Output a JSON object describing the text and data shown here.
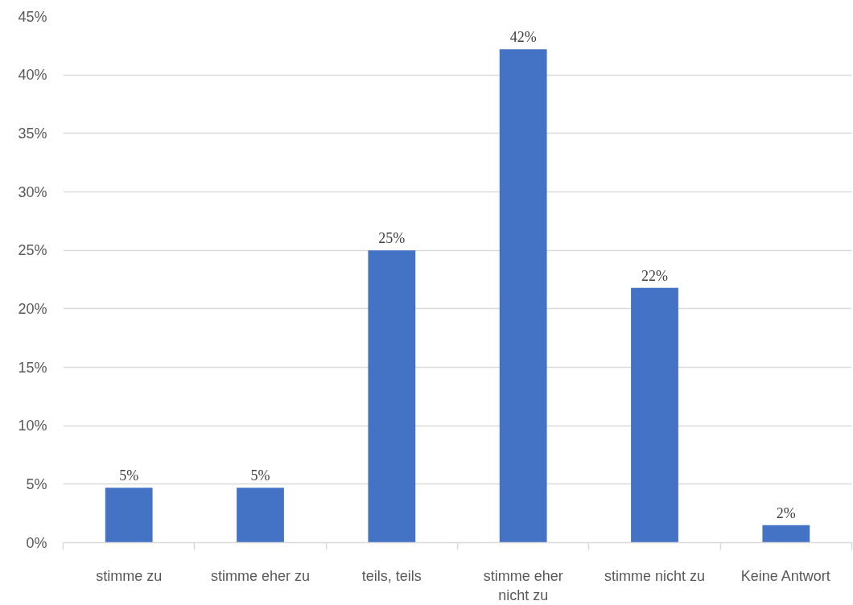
{
  "chart_data": {
    "type": "bar",
    "categories": [
      "stimme zu",
      "stimme eher zu",
      "teils, teils",
      "stimme eher nicht zu",
      "stimme nicht zu",
      "Keine Antwort"
    ],
    "values": [
      4.7,
      4.7,
      25,
      42.2,
      21.8,
      1.5
    ],
    "value_labels": [
      "5%",
      "5%",
      "25%",
      "42%",
      "22%",
      "2%"
    ],
    "color": "#4472c4",
    "ylim": [
      0,
      45
    ],
    "yticks": [
      {
        "value": 0,
        "label": "0%"
      },
      {
        "value": 5,
        "label": "5%"
      },
      {
        "value": 10,
        "label": "10%"
      },
      {
        "value": 15,
        "label": "15%"
      },
      {
        "value": 20,
        "label": "20%"
      },
      {
        "value": 25,
        "label": "25%"
      },
      {
        "value": 30,
        "label": "30%"
      },
      {
        "value": 35,
        "label": "35%"
      },
      {
        "value": 40,
        "label": "40%"
      },
      {
        "value": 45,
        "label": "45%"
      }
    ],
    "grid": "y",
    "legend": false
  }
}
